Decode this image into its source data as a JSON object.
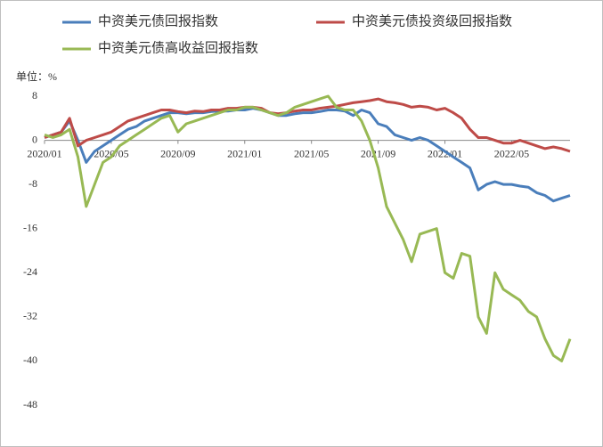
{
  "chart_data": {
    "type": "line",
    "y_axis_label": "单位：%",
    "categories": [
      "2020/01",
      null,
      null,
      null,
      null,
      null,
      null,
      null,
      "2020/05",
      null,
      null,
      null,
      null,
      null,
      null,
      null,
      "2020/09",
      null,
      null,
      null,
      null,
      null,
      null,
      null,
      "2021/01",
      null,
      null,
      null,
      null,
      null,
      null,
      null,
      "2021/05",
      null,
      null,
      null,
      null,
      null,
      null,
      null,
      "2021/09",
      null,
      null,
      null,
      null,
      null,
      null,
      null,
      "2022/01",
      null,
      null,
      null,
      null,
      null,
      null,
      null,
      "2022/05",
      null,
      null,
      null,
      null,
      null,
      null,
      null
    ],
    "series": [
      {
        "name": "中资美元债回报指数",
        "color": "#4a7ebb",
        "values": [
          0.5,
          1,
          1.5,
          3.5,
          0,
          -4,
          -2,
          -1,
          0,
          1,
          2,
          2.5,
          3.5,
          4,
          4.5,
          5,
          5,
          4.8,
          5,
          5,
          5.2,
          5.3,
          5.3,
          5.5,
          5.5,
          5.8,
          5.5,
          5,
          4.5,
          4.5,
          4.8,
          5,
          5,
          5.2,
          5.5,
          5.5,
          5.3,
          4.5,
          5.5,
          5,
          3,
          2.5,
          1,
          0.5,
          0,
          0.5,
          0,
          -1,
          -2,
          -3,
          -4,
          -5,
          -9,
          -8,
          -7.5,
          -8,
          -8,
          -8.3,
          -8.5,
          -9.5,
          -10,
          -11,
          -10.5,
          -10
        ]
      },
      {
        "name": "中资美元债投资级回报指数",
        "color": "#be4b48",
        "values": [
          0.5,
          1,
          1.5,
          4,
          -1,
          0,
          0.5,
          1,
          1.5,
          2.5,
          3.5,
          4,
          4.5,
          5,
          5.5,
          5.5,
          5.2,
          5,
          5.3,
          5.2,
          5.5,
          5.5,
          5.8,
          5.8,
          6,
          6,
          5.8,
          5,
          4.8,
          5,
          5.3,
          5.5,
          5.5,
          5.8,
          6,
          6.2,
          6.5,
          6.8,
          7,
          7.2,
          7.5,
          7,
          6.8,
          6.5,
          6,
          6.2,
          6,
          5.5,
          5.8,
          5,
          4,
          2,
          0.5,
          0.5,
          0,
          -0.5,
          -0.5,
          0,
          -0.5,
          -1,
          -1.5,
          -1.2,
          -1.5,
          -2
        ]
      },
      {
        "name": "中资美元债高收益回报指数",
        "color": "#98b954",
        "values": [
          1,
          0.5,
          1,
          2,
          -3,
          -12,
          -8,
          -4,
          -3,
          -1,
          0,
          1,
          2,
          3,
          4,
          4.5,
          1.5,
          3,
          3.5,
          4,
          4.5,
          5,
          5.5,
          5.5,
          6,
          6,
          5.5,
          5,
          4.5,
          5,
          6,
          6.5,
          7,
          7.5,
          8,
          6,
          5.5,
          5.5,
          3.5,
          0,
          -5,
          -12,
          -15,
          -18,
          -22,
          -17,
          -16.5,
          -16,
          -24,
          -25,
          -20.5,
          -21,
          -32,
          -35,
          -24,
          -27,
          -28,
          -29,
          -31,
          -32,
          -36,
          -39,
          -40,
          -36
        ]
      }
    ],
    "ylim": [
      -48,
      8
    ],
    "yticks": [
      8,
      0,
      -8,
      -16,
      -24,
      -32,
      -40,
      -48
    ],
    "grid": false
  }
}
